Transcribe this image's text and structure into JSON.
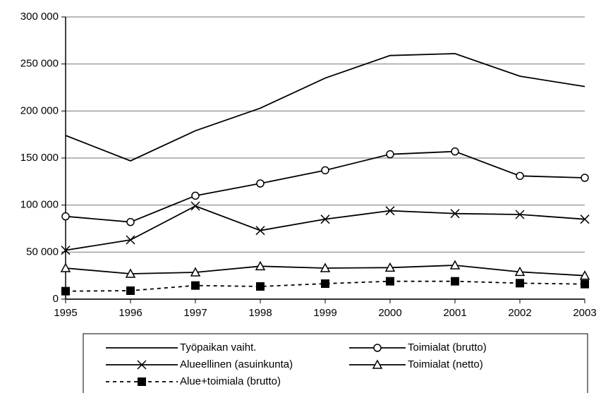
{
  "chart_data": {
    "type": "line",
    "x": [
      1995,
      1996,
      1997,
      1998,
      1999,
      2000,
      2001,
      2002,
      2003
    ],
    "xlim": [
      1995,
      2003
    ],
    "xticks": [
      1995,
      1996,
      1997,
      1998,
      1999,
      2000,
      2001,
      2002,
      2003
    ],
    "ylim": [
      0,
      300000
    ],
    "yticks": [
      {
        "value": 0,
        "label": "0"
      },
      {
        "value": 50000,
        "label": "50 000"
      },
      {
        "value": 100000,
        "label": "100 000"
      },
      {
        "value": 150000,
        "label": "150 000"
      },
      {
        "value": 200000,
        "label": "200 000"
      },
      {
        "value": 250000,
        "label": "250 000"
      },
      {
        "value": 300000,
        "label": "300 000"
      }
    ],
    "grid": true,
    "legend": "bottom",
    "series": [
      {
        "name": "Työpaikan vaiht.",
        "color": "#000000",
        "marker": "none",
        "dashed": false,
        "values": [
          174000,
          147000,
          179000,
          203000,
          235000,
          259000,
          261000,
          237000,
          226000
        ]
      },
      {
        "name": "Toimialat (brutto)",
        "color": "#000000",
        "marker": "circle",
        "dashed": false,
        "values": [
          88000,
          82000,
          110000,
          123000,
          137000,
          154000,
          157000,
          131000,
          129000
        ]
      },
      {
        "name": "Alueellinen (asuinkunta)",
        "color": "#000000",
        "marker": "x",
        "dashed": false,
        "values": [
          52000,
          63000,
          99000,
          73000,
          85000,
          94000,
          91000,
          90000,
          85000
        ]
      },
      {
        "name": "Toimialat (netto)",
        "color": "#000000",
        "marker": "triangle",
        "dashed": false,
        "values": [
          33000,
          27000,
          28500,
          35000,
          33000,
          33500,
          36000,
          29000,
          25000
        ]
      },
      {
        "name": "Alue+toimiala (brutto)",
        "color": "#000000",
        "marker": "square",
        "dashed": true,
        "values": [
          8500,
          9000,
          14500,
          13500,
          16500,
          19000,
          19000,
          17000,
          16000
        ]
      }
    ]
  }
}
